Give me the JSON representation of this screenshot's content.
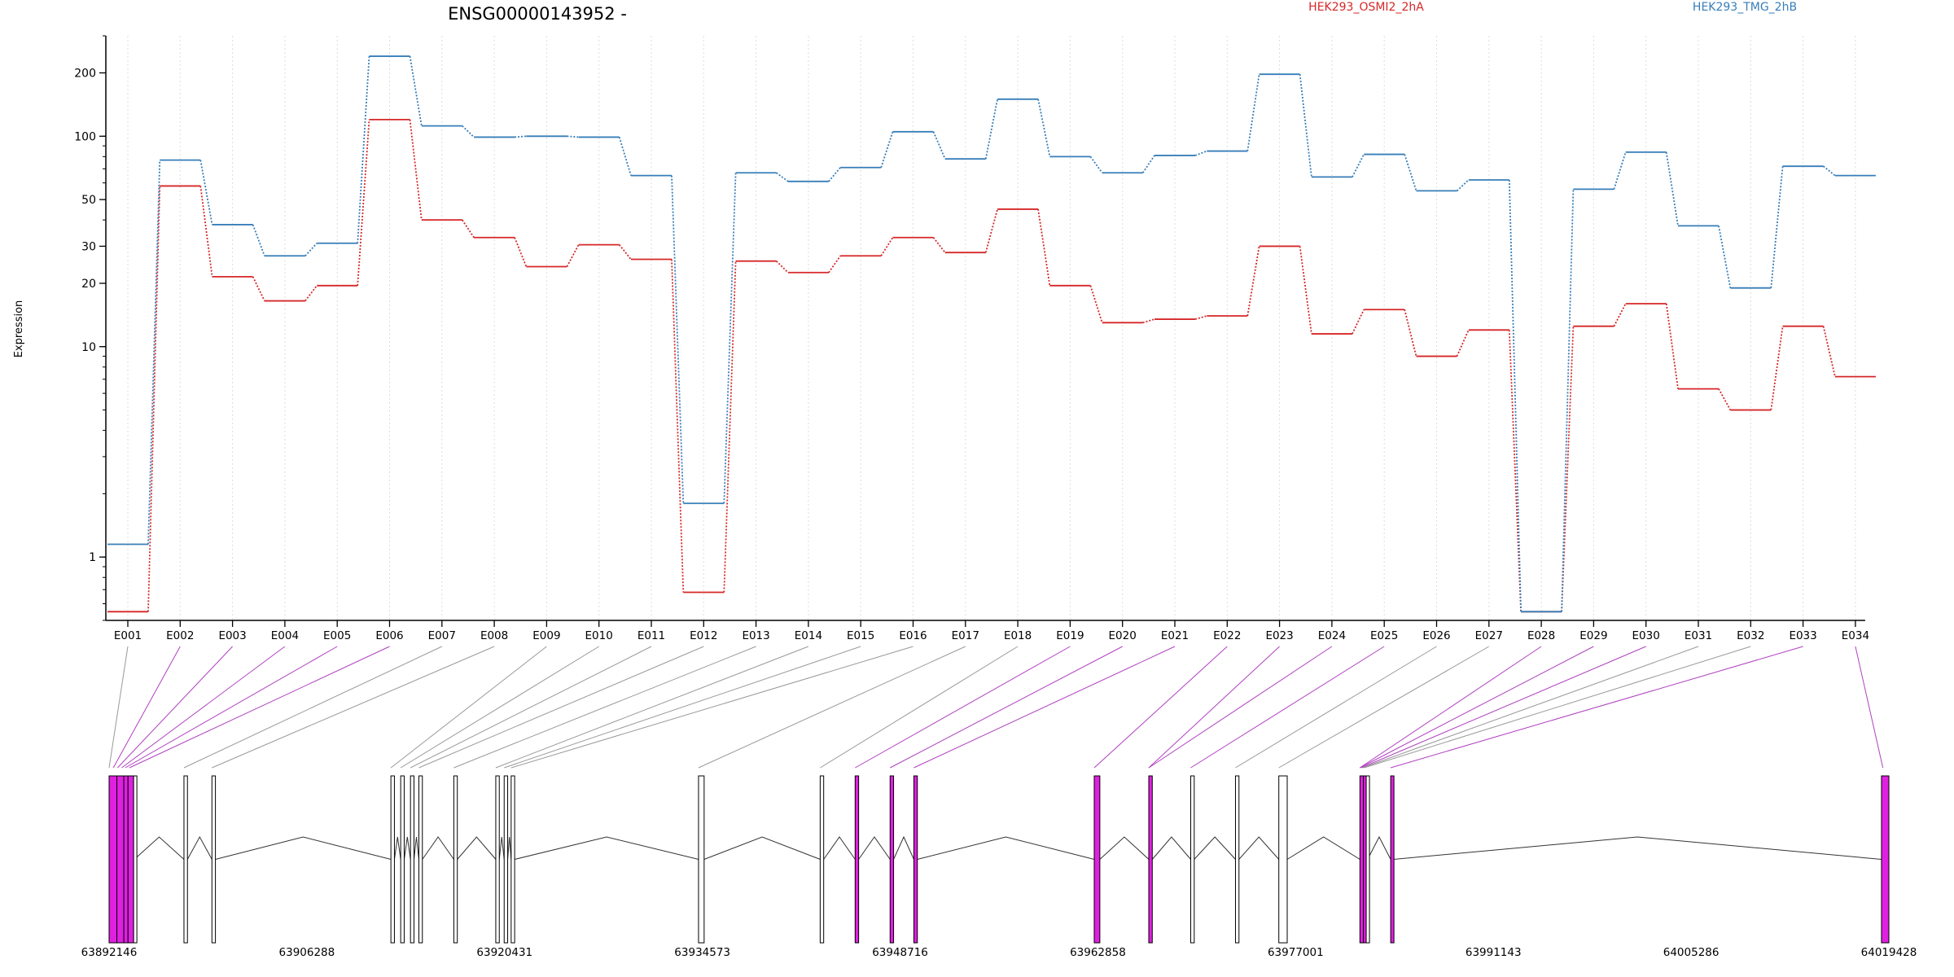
{
  "chart_data": [
    {
      "type": "line",
      "title": "ENSG00000143952 -",
      "ylabel": "Expression",
      "xlabel": "",
      "scale_y": "log",
      "ylim": [
        0.5,
        300
      ],
      "ytick_labels": [
        "1",
        "10",
        "20",
        "30",
        "50",
        "100",
        "200"
      ],
      "grid": "vertical dotted",
      "legend": "top-right",
      "categories": [
        "E001",
        "E002",
        "E003",
        "E004",
        "E005",
        "E006",
        "E007",
        "E008",
        "E009",
        "E010",
        "E011",
        "E012",
        "E013",
        "E014",
        "E015",
        "E016",
        "E017",
        "E018",
        "E019",
        "E020",
        "E021",
        "E022",
        "E023",
        "E024",
        "E025",
        "E026",
        "E027",
        "E028",
        "E029",
        "E030",
        "E031",
        "E032",
        "E033",
        "E034"
      ],
      "series": [
        {
          "name": "HEK293_OSMI2_2hA",
          "color": "#d62728",
          "values": [
            0.55,
            58,
            21.5,
            16.5,
            19.5,
            120,
            40,
            33,
            24,
            30.5,
            26,
            0.68,
            25.5,
            22.5,
            27,
            33,
            28,
            45,
            19.5,
            13,
            13.5,
            14,
            30,
            11.5,
            15,
            9,
            12,
            0.55,
            12.5,
            16,
            6.3,
            5,
            12.5,
            7.2
          ]
        },
        {
          "name": "HEK293_TMG_2hB",
          "color": "#377eb8",
          "values": [
            1.15,
            77,
            38,
            27,
            31,
            240,
            112,
            99,
            100,
            99,
            65,
            1.8,
            67,
            61,
            71,
            105,
            78,
            150,
            80,
            67,
            81,
            85,
            197,
            64,
            82,
            55,
            62,
            0.55,
            56,
            84,
            37.5,
            19,
            72,
            65
          ]
        }
      ]
    },
    {
      "type": "gene-model",
      "position_labels": [
        "63892146",
        "63906288",
        "63920431",
        "63934573",
        "63948716",
        "63962858",
        "63977001",
        "63991143",
        "64005286",
        "64019428"
      ],
      "range": [
        63892146,
        64019428
      ],
      "highlight_color": "#e020e0",
      "exons": [
        {
          "id": "E001",
          "start": 63892146,
          "end": 63892700,
          "highlight": true
        },
        {
          "id": "E002",
          "start": 63892700,
          "end": 63893200,
          "highlight": true
        },
        {
          "id": "E003",
          "start": 63893200,
          "end": 63893500,
          "highlight": true
        },
        {
          "id": "E004",
          "start": 63893500,
          "end": 63893900,
          "highlight": true
        },
        {
          "id": "E005",
          "start": 63893900,
          "end": 63893950,
          "highlight": false
        },
        {
          "id": "E006",
          "start": 63897500,
          "end": 63897750,
          "highlight": false
        },
        {
          "id": "E007",
          "start": 63899500,
          "end": 63899750,
          "highlight": false
        },
        {
          "id": "E008",
          "start": 63912300,
          "end": 63912550,
          "highlight": false
        },
        {
          "id": "E009",
          "start": 63913000,
          "end": 63913250,
          "highlight": false
        },
        {
          "id": "E010",
          "start": 63913700,
          "end": 63913950,
          "highlight": false
        },
        {
          "id": "E011",
          "start": 63914300,
          "end": 63914550,
          "highlight": false
        },
        {
          "id": "E012",
          "start": 63916800,
          "end": 63917050,
          "highlight": false
        },
        {
          "id": "E013",
          "start": 63919800,
          "end": 63920050,
          "highlight": false
        },
        {
          "id": "E014",
          "start": 63920400,
          "end": 63920650,
          "highlight": false
        },
        {
          "id": "E015",
          "start": 63920900,
          "end": 63921150,
          "highlight": false
        },
        {
          "id": "E016",
          "start": 63934300,
          "end": 63934700,
          "highlight": false
        },
        {
          "id": "E017",
          "start": 63943000,
          "end": 63943250,
          "highlight": false
        },
        {
          "id": "E018",
          "start": 63945500,
          "end": 63945750,
          "highlight": true
        },
        {
          "id": "E019",
          "start": 63948000,
          "end": 63948250,
          "highlight": true
        },
        {
          "id": "E020",
          "start": 63949700,
          "end": 63949950,
          "highlight": true
        },
        {
          "id": "E021",
          "start": 63962600,
          "end": 63963000,
          "highlight": true
        },
        {
          "id": "E022",
          "start": 63966500,
          "end": 63966750,
          "highlight": true
        },
        {
          "id": "E023",
          "start": 63969500,
          "end": 63969750,
          "highlight": false
        },
        {
          "id": "E024",
          "start": 63972700,
          "end": 63972950,
          "highlight": false
        },
        {
          "id": "E025",
          "start": 63975800,
          "end": 63976400,
          "highlight": false
        },
        {
          "id": "E026",
          "start": 63981600,
          "end": 63981850,
          "highlight": true
        },
        {
          "id": "E027",
          "start": 63981850,
          "end": 63982050,
          "highlight": true
        },
        {
          "id": "E028",
          "start": 63982050,
          "end": 63982150,
          "highlight": false
        },
        {
          "id": "E029",
          "start": 63983800,
          "end": 63984000,
          "highlight": true
        },
        {
          "id": "E030",
          "start": 64018900,
          "end": 64019428,
          "highlight": true
        }
      ],
      "bin_mapping": [
        {
          "bin": "E001",
          "pos": 63892146,
          "highlight": false
        },
        {
          "bin": "E002",
          "pos": 63892450,
          "highlight": true
        },
        {
          "bin": "E003",
          "pos": 63892750,
          "highlight": true
        },
        {
          "bin": "E004",
          "pos": 63893050,
          "highlight": true
        },
        {
          "bin": "E005",
          "pos": 63893300,
          "highlight": true
        },
        {
          "bin": "E006",
          "pos": 63893600,
          "highlight": true
        },
        {
          "bin": "E007",
          "pos": 63897500,
          "highlight": false
        },
        {
          "bin": "E008",
          "pos": 63899500,
          "highlight": false
        },
        {
          "bin": "E009",
          "pos": 63912300,
          "highlight": false
        },
        {
          "bin": "E010",
          "pos": 63913000,
          "highlight": false
        },
        {
          "bin": "E011",
          "pos": 63913700,
          "highlight": false
        },
        {
          "bin": "E012",
          "pos": 63914300,
          "highlight": false
        },
        {
          "bin": "E013",
          "pos": 63916800,
          "highlight": false
        },
        {
          "bin": "E014",
          "pos": 63919800,
          "highlight": false
        },
        {
          "bin": "E015",
          "pos": 63920400,
          "highlight": false
        },
        {
          "bin": "E016",
          "pos": 63920900,
          "highlight": false
        },
        {
          "bin": "E017",
          "pos": 63934300,
          "highlight": false
        },
        {
          "bin": "E018",
          "pos": 63943000,
          "highlight": false
        },
        {
          "bin": "E019",
          "pos": 63945500,
          "highlight": true
        },
        {
          "bin": "E020",
          "pos": 63948000,
          "highlight": true
        },
        {
          "bin": "E021",
          "pos": 63949700,
          "highlight": true
        },
        {
          "bin": "E022",
          "pos": 63962600,
          "highlight": true
        },
        {
          "bin": "E023",
          "pos": 63966500,
          "highlight": true
        },
        {
          "bin": "E024",
          "pos": 63966500,
          "highlight": true
        },
        {
          "bin": "E025",
          "pos": 63969500,
          "highlight": true
        },
        {
          "bin": "E026",
          "pos": 63972700,
          "highlight": false
        },
        {
          "bin": "E027",
          "pos": 63975800,
          "highlight": false
        },
        {
          "bin": "E028",
          "pos": 63981600,
          "highlight": true
        },
        {
          "bin": "E029",
          "pos": 63981600,
          "highlight": true
        },
        {
          "bin": "E030",
          "pos": 63981700,
          "highlight": true
        },
        {
          "bin": "E031",
          "pos": 63981800,
          "highlight": false
        },
        {
          "bin": "E032",
          "pos": 63981900,
          "highlight": false
        },
        {
          "bin": "E033",
          "pos": 63983800,
          "highlight": true
        },
        {
          "bin": "E034",
          "pos": 64019000,
          "highlight": true
        }
      ]
    }
  ]
}
